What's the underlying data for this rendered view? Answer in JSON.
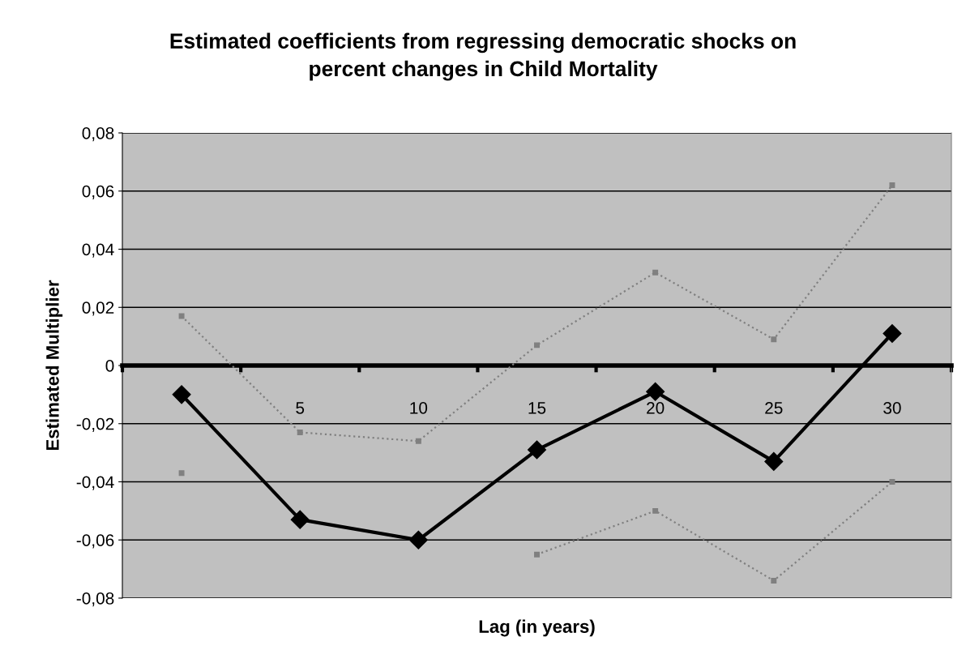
{
  "chart_data": {
    "type": "line",
    "title": "Estimated coefficients from regressing democratic shocks on\npercent changes in Child Mortality",
    "xlabel": "Lag (in years)",
    "ylabel": "Estimated Multiplier",
    "categories": [
      null,
      "5",
      "10",
      "15",
      "20",
      "25",
      "30"
    ],
    "series": [
      {
        "color": "#808080",
        "values": [
          0.017,
          -0.023,
          -0.026,
          0.007,
          0.032,
          0.009,
          0.062
        ],
        "marker": "square",
        "line_style": "dotted"
      },
      {
        "color": "#808080",
        "values": [
          -0.037,
          null,
          null,
          -0.065,
          -0.05,
          -0.074,
          -0.04
        ],
        "marker": "square",
        "line_style": "dotted"
      },
      {
        "color": "#000000",
        "values": [
          -0.01,
          -0.053,
          -0.06,
          -0.029,
          -0.009,
          -0.033,
          0.011
        ],
        "marker": "diamond",
        "line_style": "solid"
      }
    ],
    "ylim": [
      -0.08,
      0.08
    ],
    "yticks": [
      {
        "value": -0.08,
        "label": "-0,08"
      },
      {
        "value": -0.06,
        "label": "-0,06"
      },
      {
        "value": -0.04,
        "label": "-0,04"
      },
      {
        "value": -0.02,
        "label": "-0,02"
      },
      {
        "value": 0,
        "label": "0"
      },
      {
        "value": 0.02,
        "label": "0,02"
      },
      {
        "value": 0.04,
        "label": "0,04"
      },
      {
        "value": 0.06,
        "label": "0,06"
      },
      {
        "value": 0.08,
        "label": "0,08"
      }
    ],
    "grid": "y",
    "legend": false
  }
}
